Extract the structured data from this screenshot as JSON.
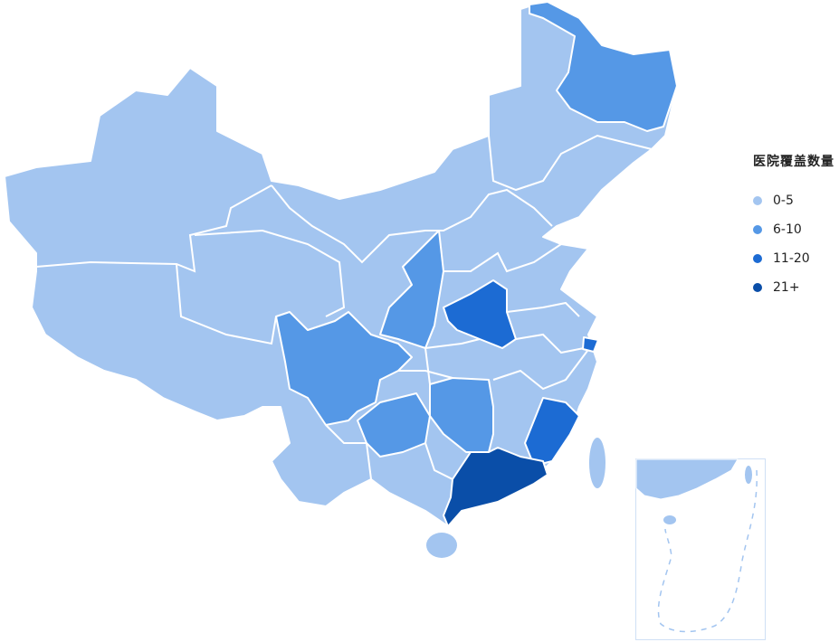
{
  "legend": {
    "title": "医院覆盖数量",
    "items": [
      {
        "label": "0-5",
        "color": "#a3c5f0"
      },
      {
        "label": "6-10",
        "color": "#5598e6"
      },
      {
        "label": "11-20",
        "color": "#1c6bd3"
      },
      {
        "label": "21+",
        "color": "#0a4ea8"
      }
    ]
  },
  "regions": [
    {
      "id": "heilongjiang",
      "level": 1
    },
    {
      "id": "shaanxi",
      "level": 1
    },
    {
      "id": "sichuan",
      "level": 1
    },
    {
      "id": "guizhou",
      "level": 1
    },
    {
      "id": "hunan",
      "level": 1
    },
    {
      "id": "henan",
      "level": 2
    },
    {
      "id": "fujian",
      "level": 2
    },
    {
      "id": "shanghai",
      "level": 2
    },
    {
      "id": "guangdong",
      "level": 3
    }
  ],
  "base_level": 0,
  "border_color": "#ffffff",
  "inset_border_color": "#cfe0f5"
}
